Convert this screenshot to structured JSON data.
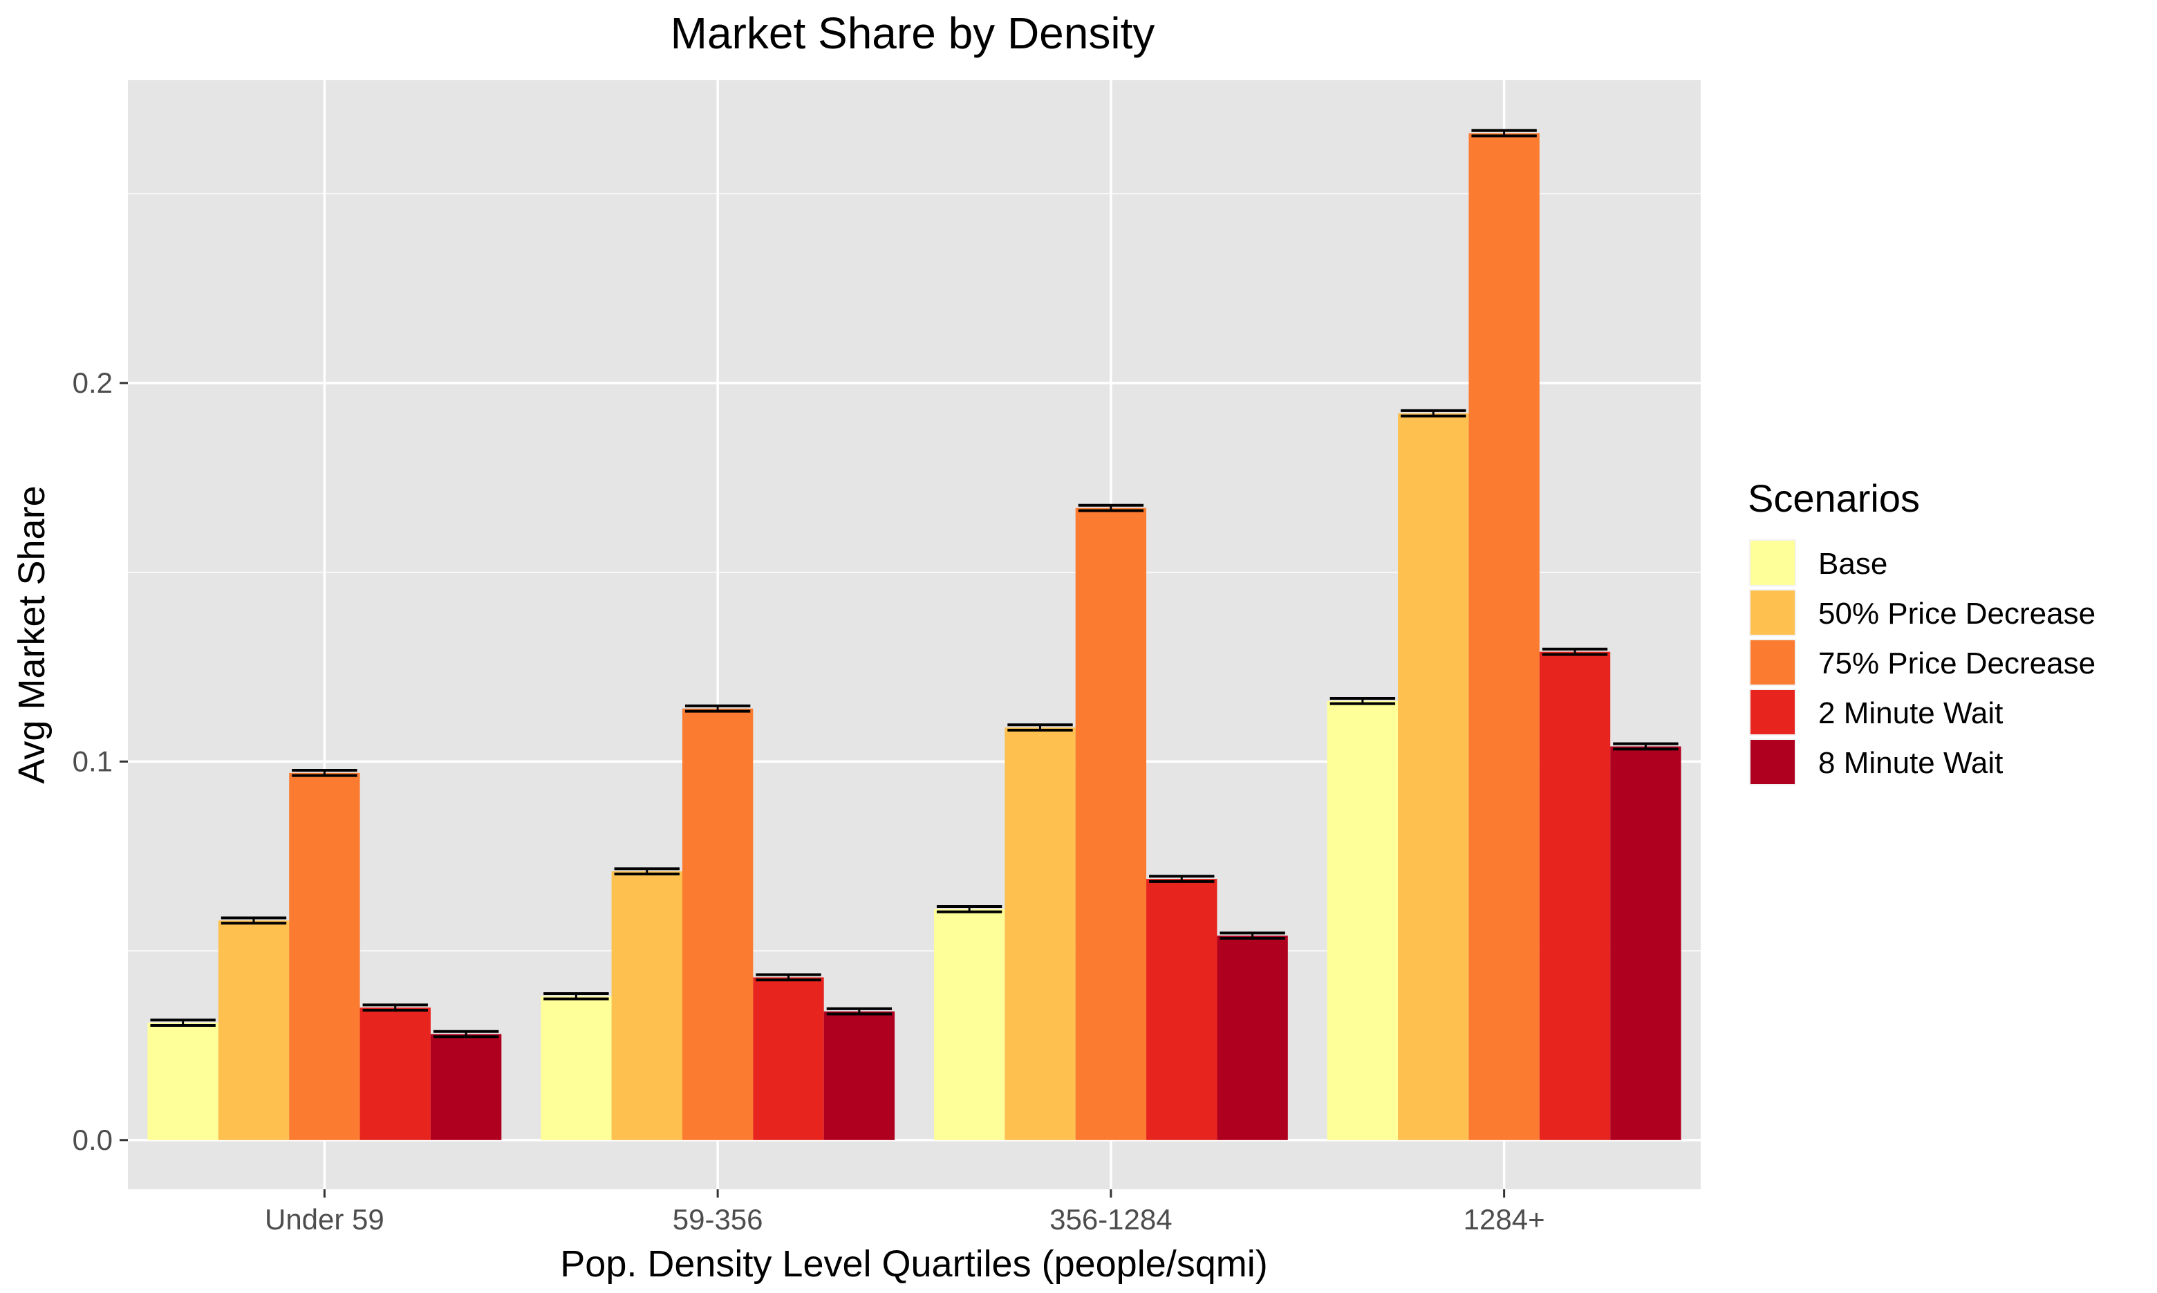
{
  "chart_data": {
    "type": "bar",
    "title": "Market Share by Density",
    "xlabel": "Pop. Density Level Quartiles (people/sqmi)",
    "ylabel": "Avg Market Share",
    "categories": [
      "Under 59",
      "59-356",
      "356-1284",
      "1284+"
    ],
    "ylim": [
      -0.013,
      0.28
    ],
    "yticks": [
      0.0,
      0.1,
      0.2
    ],
    "ytick_labels": [
      "0.0",
      "0.1",
      "0.2"
    ],
    "grid": true,
    "legend": {
      "title": "Scenarios",
      "position": "right"
    },
    "series": [
      {
        "name": "Base",
        "color": "#FFFF99",
        "values": [
          0.031,
          0.038,
          0.061,
          0.116
        ]
      },
      {
        "name": "50% Price Decrease",
        "color": "#FEC04F",
        "values": [
          0.058,
          0.071,
          0.109,
          0.192
        ]
      },
      {
        "name": "75% Price Decrease",
        "color": "#FB7B31",
        "values": [
          0.097,
          0.114,
          0.167,
          0.266
        ]
      },
      {
        "name": "2 Minute Wait",
        "color": "#E8241E",
        "values": [
          0.035,
          0.043,
          0.069,
          0.129
        ]
      },
      {
        "name": "8 Minute Wait",
        "color": "#B00020",
        "values": [
          0.028,
          0.034,
          0.054,
          0.104
        ]
      }
    ],
    "error_bar_color": "#000000",
    "panel_background": "#E5E5E5"
  }
}
